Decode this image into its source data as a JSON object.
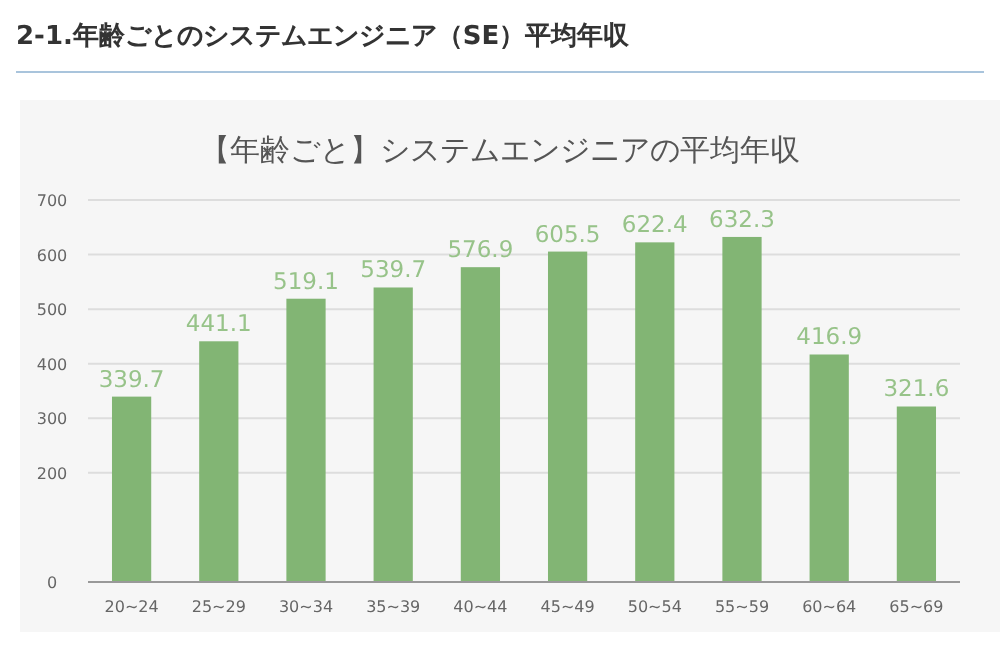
{
  "chart_data": {
    "type": "bar",
    "title": "2-1.年齢ごとのシステムエンジニア（SE）平均年収",
    "subtitle": "【年齢ごと】システムエンジニアの平均年収",
    "categories": [
      "20~24",
      "25~29",
      "30~34",
      "35~39",
      "40~44",
      "45~49",
      "50~54",
      "55~59",
      "60~64",
      "65~69"
    ],
    "values": [
      339.7,
      441.1,
      519.1,
      539.7,
      576.9,
      605.5,
      622.4,
      632.3,
      416.9,
      321.6
    ],
    "color": "#82b574",
    "ylim": [
      0,
      700
    ],
    "yticks": [
      0,
      200,
      300,
      400,
      500,
      600,
      700
    ],
    "grid": "y",
    "data_labels": true
  }
}
